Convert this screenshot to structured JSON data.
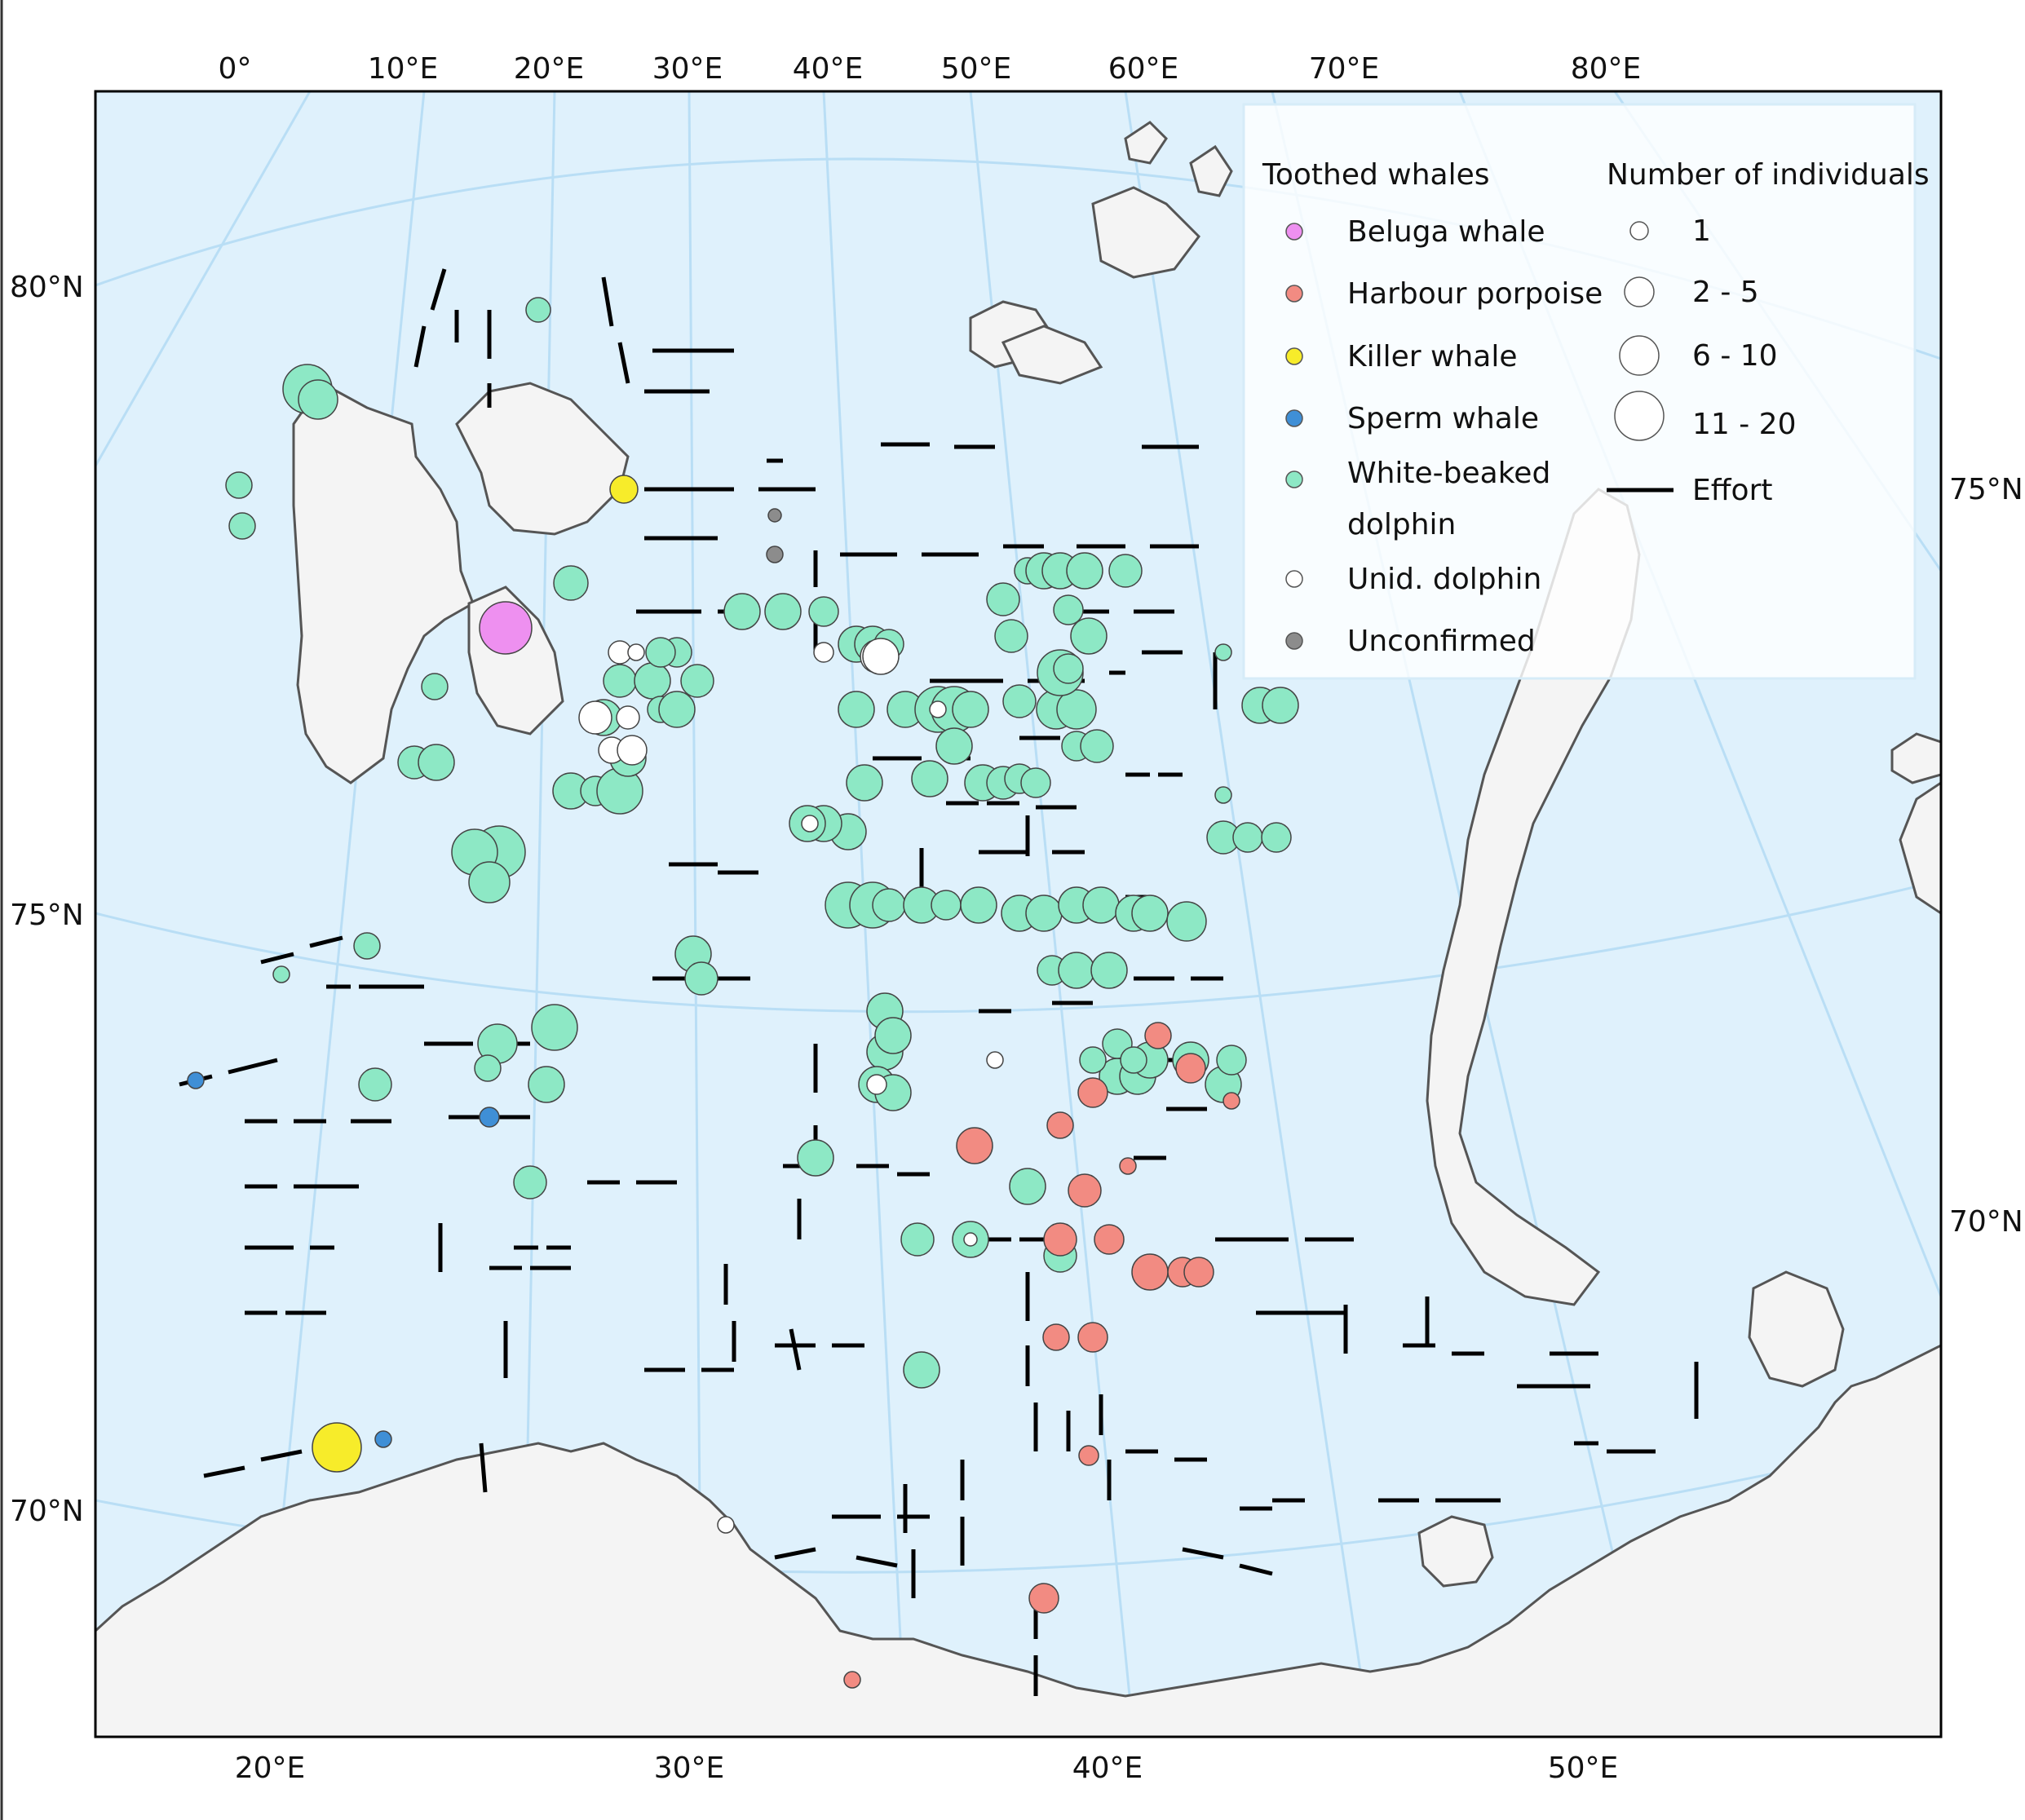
{
  "map": {
    "top_lon_labels": [
      "0°",
      "10°E",
      "20°E",
      "30°E",
      "40°E",
      "50°E",
      "60°E",
      "70°E",
      "80°E"
    ],
    "bottom_lon_labels": [
      "20°E",
      "30°E",
      "40°E",
      "50°E"
    ],
    "left_lat_labels": [
      "80°N",
      "75°N",
      "70°N"
    ],
    "right_lat_labels": [
      "75°N",
      "70°N"
    ],
    "colors": {
      "sea": "#dff1fc",
      "land": "#f4f4f4",
      "coast": "#555555",
      "graticule": "#b9def5",
      "effort": "#000000"
    }
  },
  "legend": {
    "species_title": "Toothed whales",
    "size_title": "Number of individuals",
    "species": [
      {
        "label": "Beluga whale",
        "color": "#ee90f0"
      },
      {
        "label": "Harbour porpoise",
        "color": "#f28b82"
      },
      {
        "label": "Killer whale",
        "color": "#f7ec2a"
      },
      {
        "label": "Sperm whale",
        "color": "#3f8fd6"
      },
      {
        "label": "White-beaked",
        "label2": "dolphin",
        "color": "#8de8c5"
      },
      {
        "label": "Unid. dolphin",
        "color": "#ffffff"
      },
      {
        "label": "Unconfirmed",
        "color": "#8c8c8c"
      }
    ],
    "sizes": [
      {
        "label": "1"
      },
      {
        "label": "2 - 5"
      },
      {
        "label": "6 - 10"
      },
      {
        "label": "11 - 20"
      }
    ],
    "effort_label": "Effort"
  }
}
